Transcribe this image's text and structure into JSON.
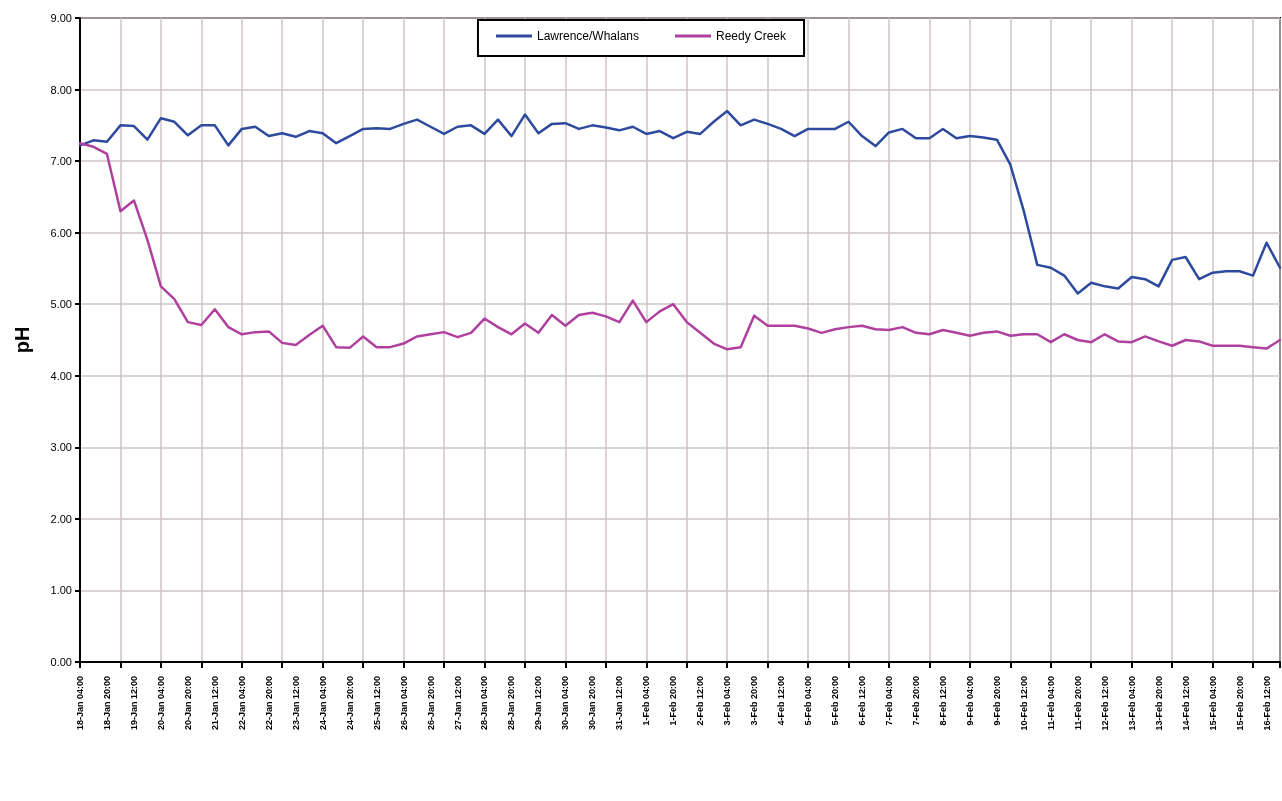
{
  "chart_data": {
    "type": "line",
    "ylabel": "pH",
    "ylim": [
      0,
      9
    ],
    "yticks": [
      {
        "value": 0,
        "label": "0.00"
      },
      {
        "value": 1,
        "label": "1.00"
      },
      {
        "value": 2,
        "label": "2.00"
      },
      {
        "value": 3,
        "label": "3.00"
      },
      {
        "value": 4,
        "label": "4.00"
      },
      {
        "value": 5,
        "label": "5.00"
      },
      {
        "value": 6,
        "label": "6.00"
      },
      {
        "value": 7,
        "label": "7.00"
      },
      {
        "value": 8,
        "label": "8.00"
      },
      {
        "value": 9,
        "label": "9.00"
      }
    ],
    "categories": [
      "18-Jan 04:00",
      null,
      "18-Jan 20:00",
      null,
      "19-Jan 12:00",
      null,
      "20-Jan 04:00",
      null,
      "20-Jan 20:00",
      null,
      "21-Jan 12:00",
      null,
      "22-Jan 04:00",
      null,
      "22-Jan 20:00",
      null,
      "23-Jan 12:00",
      null,
      "24-Jan 04:00",
      null,
      "24-Jan 20:00",
      null,
      "25-Jan 12:00",
      null,
      "26-Jan 04:00",
      null,
      "26-Jan 20:00",
      null,
      "27-Jan 12:00",
      null,
      "28-Jan 04:00",
      null,
      "28-Jan 20:00",
      null,
      "29-Jan 12:00",
      null,
      "30-Jan 04:00",
      null,
      "30-Jan 20:00",
      null,
      "31-Jan 12:00",
      null,
      "1-Feb 04:00",
      null,
      "1-Feb 20:00",
      null,
      "2-Feb 12:00",
      null,
      "3-Feb 04:00",
      null,
      "3-Feb 20:00",
      null,
      "4-Feb 12:00",
      null,
      "5-Feb 04:00",
      null,
      "5-Feb 20:00",
      null,
      "6-Feb 12:00",
      null,
      "7-Feb 04:00",
      null,
      "7-Feb 20:00",
      null,
      "8-Feb 12:00",
      null,
      "9-Feb 04:00",
      null,
      "9-Feb 20:00",
      null,
      "10-Feb 12:00",
      null,
      "11-Feb 04:00",
      null,
      "11-Feb 20:00",
      null,
      "12-Feb 12:00",
      null,
      "13-Feb 04:00",
      null,
      "13-Feb 20:00",
      null,
      "14-Feb 12:00",
      null,
      "15-Feb 04:00",
      null,
      "15-Feb 20:00",
      null,
      "16-Feb 12:00",
      null
    ],
    "grid": true,
    "legend": "top",
    "marker": "none",
    "line_style": "solid",
    "series": [
      {
        "name": "Lawrence/Whalans",
        "color": "#2e4a9e",
        "values": [
          7.22,
          7.29,
          7.27,
          7.5,
          7.49,
          7.3,
          7.6,
          7.55,
          7.36,
          7.5,
          7.5,
          7.22,
          7.45,
          7.48,
          7.35,
          7.39,
          7.34,
          7.42,
          7.39,
          7.25,
          7.35,
          7.45,
          7.46,
          7.45,
          7.52,
          7.58,
          7.48,
          7.38,
          7.48,
          7.5,
          7.38,
          7.58,
          7.35,
          7.65,
          7.39,
          7.52,
          7.53,
          7.45,
          7.5,
          7.47,
          7.43,
          7.48,
          7.38,
          7.42,
          7.32,
          7.41,
          7.38,
          7.55,
          7.7,
          7.5,
          7.58,
          7.52,
          7.45,
          7.35,
          7.45,
          7.45,
          7.45,
          7.55,
          7.35,
          7.21,
          7.4,
          7.45,
          7.32,
          7.32,
          7.45,
          7.32,
          7.35,
          7.33,
          7.3,
          6.95,
          6.3,
          5.55,
          5.51,
          5.4,
          5.15,
          5.3,
          5.25,
          5.22,
          5.38,
          5.35,
          5.25,
          5.62,
          5.66,
          5.35,
          5.44,
          5.46,
          5.46,
          5.4,
          5.86,
          5.51
        ]
      },
      {
        "name": "Reedy Creek",
        "color": "#b0409e",
        "values": [
          7.25,
          7.2,
          7.1,
          6.3,
          6.45,
          5.9,
          5.25,
          5.07,
          4.75,
          4.71,
          4.93,
          4.68,
          4.58,
          4.61,
          4.62,
          4.46,
          4.43,
          4.57,
          4.7,
          4.4,
          4.39,
          4.55,
          4.4,
          4.4,
          4.45,
          4.55,
          4.58,
          4.61,
          4.54,
          4.6,
          4.8,
          4.68,
          4.58,
          4.73,
          4.6,
          4.85,
          4.7,
          4.85,
          4.88,
          4.83,
          4.75,
          5.05,
          4.75,
          4.9,
          5.0,
          4.75,
          4.6,
          4.45,
          4.37,
          4.4,
          4.84,
          4.7,
          4.7,
          4.7,
          4.66,
          4.6,
          4.65,
          4.68,
          4.7,
          4.65,
          4.64,
          4.68,
          4.6,
          4.58,
          4.64,
          4.6,
          4.56,
          4.6,
          4.62,
          4.56,
          4.58,
          4.58,
          4.47,
          4.58,
          4.5,
          4.47,
          4.58,
          4.48,
          4.47,
          4.55,
          4.48,
          4.42,
          4.5,
          4.48,
          4.42,
          4.42,
          4.42,
          4.4,
          4.38,
          4.5
        ]
      }
    ]
  }
}
